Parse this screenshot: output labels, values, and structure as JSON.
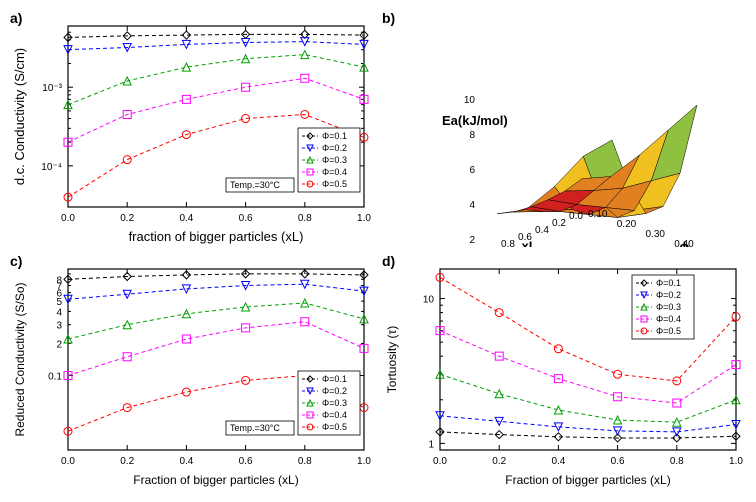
{
  "panels": {
    "a": {
      "label": "a)",
      "type": "line-log",
      "title": "",
      "xlabel": "fraction of bigger particles (xL)",
      "ylabel": "d.c. Conductivity (S/cm)",
      "xlim": [
        0.0,
        1.0
      ],
      "xtick_step": 0.2,
      "yticks": [
        0.0001,
        0.001
      ],
      "ytick_labels": [
        "10⁻⁴",
        "10⁻³"
      ],
      "axis_color": "#000000",
      "background": "#ffffff",
      "temp_label": "Temp.=30°C",
      "label_fontsize": 13,
      "tick_fontsize": 10,
      "series": [
        {
          "name": "Φ=0.1",
          "color": "#000000",
          "marker": "diamond",
          "x": [
            0.0,
            0.2,
            0.4,
            0.6,
            0.8,
            1.0
          ],
          "y": [
            0.0043,
            0.0045,
            0.0046,
            0.0047,
            0.0047,
            0.0046
          ]
        },
        {
          "name": "Φ=0.2",
          "color": "#0000ff",
          "marker": "triangle-down",
          "x": [
            0.0,
            0.2,
            0.4,
            0.6,
            0.8,
            1.0
          ],
          "y": [
            0.003,
            0.0032,
            0.0035,
            0.0037,
            0.0038,
            0.0035
          ]
        },
        {
          "name": "Φ=0.3",
          "color": "#00a000",
          "marker": "triangle-up",
          "x": [
            0.0,
            0.2,
            0.4,
            0.6,
            0.8,
            1.0
          ],
          "y": [
            0.0006,
            0.0012,
            0.0018,
            0.0023,
            0.0026,
            0.0018
          ]
        },
        {
          "name": "Φ=0.4",
          "color": "#ff00ff",
          "marker": "square",
          "x": [
            0.0,
            0.2,
            0.4,
            0.6,
            0.8,
            1.0
          ],
          "y": [
            0.0002,
            0.00045,
            0.0007,
            0.001,
            0.0013,
            0.0007
          ]
        },
        {
          "name": "Φ=0.5",
          "color": "#ff0000",
          "marker": "circle",
          "x": [
            0.0,
            0.2,
            0.4,
            0.6,
            0.8,
            1.0
          ],
          "y": [
            4e-05,
            0.00012,
            0.00025,
            0.0004,
            0.00045,
            0.00023
          ]
        }
      ]
    },
    "b": {
      "label": "b)",
      "type": "surface-3d",
      "zlabel": "Ea(kJ/mol)",
      "xlabel": "xL",
      "ylabel": "ϕ",
      "x_values": [
        0.0,
        0.2,
        0.4,
        0.6,
        0.8,
        1.0
      ],
      "y_values": [
        0.1,
        0.2,
        0.3,
        0.4,
        0.5
      ],
      "xl_ticks_shown": [
        "0.8",
        "0.6",
        "0.4",
        "0.2",
        "0.0"
      ],
      "phi_ticks_shown": [
        "0.10",
        "0.20",
        "0.30",
        "0.40",
        "0.50"
      ],
      "zlim": [
        2,
        10
      ],
      "colormap": [
        "#d02020",
        "#e08020",
        "#f0c020",
        "#90c040",
        "#108030",
        "#004020"
      ],
      "z": [
        [
          3.5,
          3.2,
          3.1,
          3.1,
          3.2,
          3.5
        ],
        [
          4.2,
          3.8,
          3.4,
          3.4,
          3.8,
          4.3
        ],
        [
          6.0,
          4.5,
          3.8,
          3.8,
          4.5,
          6.2
        ],
        [
          8.0,
          5.5,
          4.2,
          4.2,
          5.5,
          8.5
        ],
        [
          10.0,
          6.5,
          5.0,
          5.0,
          7.0,
          10.0
        ]
      ],
      "label_fontsize": 13
    },
    "c": {
      "label": "c)",
      "type": "line-log",
      "xlabel": "Fraction of bigger particles (xL)",
      "ylabel": "Reduced Conductivity (S/So)",
      "xlim": [
        0.0,
        1.0
      ],
      "xtick_step": 0.2,
      "yticks_minor": [
        0.02,
        0.03,
        0.04,
        0.05,
        0.06,
        0.07,
        0.08,
        0.09,
        0.1,
        0.2,
        0.3,
        0.4,
        0.5,
        0.6,
        0.7,
        0.8,
        0.9,
        1.0
      ],
      "ytick_labels_minor": [
        "",
        "",
        "",
        "",
        "",
        "",
        "",
        "",
        "0.1",
        "2",
        "3",
        "4",
        "5",
        "6",
        "7",
        "8",
        "",
        ""
      ],
      "temp_label": "Temp.=30°C",
      "label_fontsize": 12,
      "tick_fontsize": 10,
      "series": [
        {
          "name": "Φ=0.1",
          "color": "#000000",
          "marker": "diamond",
          "x": [
            0.0,
            0.2,
            0.4,
            0.6,
            0.8,
            1.0
          ],
          "y": [
            0.8,
            0.85,
            0.88,
            0.9,
            0.9,
            0.88
          ]
        },
        {
          "name": "Φ=0.2",
          "color": "#0000ff",
          "marker": "triangle-down",
          "x": [
            0.0,
            0.2,
            0.4,
            0.6,
            0.8,
            1.0
          ],
          "y": [
            0.52,
            0.58,
            0.65,
            0.7,
            0.72,
            0.62
          ]
        },
        {
          "name": "Φ=0.3",
          "color": "#00a000",
          "marker": "triangle-up",
          "x": [
            0.0,
            0.2,
            0.4,
            0.6,
            0.8,
            1.0
          ],
          "y": [
            0.22,
            0.3,
            0.38,
            0.44,
            0.48,
            0.34
          ]
        },
        {
          "name": "Φ=0.4",
          "color": "#ff00ff",
          "marker": "square",
          "x": [
            0.0,
            0.2,
            0.4,
            0.6,
            0.8,
            1.0
          ],
          "y": [
            0.1,
            0.15,
            0.22,
            0.28,
            0.32,
            0.18
          ]
        },
        {
          "name": "Φ=0.5",
          "color": "#ff0000",
          "marker": "circle",
          "x": [
            0.0,
            0.2,
            0.4,
            0.6,
            0.8,
            1.0
          ],
          "y": [
            0.03,
            0.05,
            0.07,
            0.09,
            0.1,
            0.05
          ]
        }
      ]
    },
    "d": {
      "label": "d)",
      "type": "line-log",
      "xlabel": "Fraction of bigger particles (xL)",
      "ylabel": "Tortuosity (τ)",
      "xlim": [
        0.0,
        1.0
      ],
      "xtick_step": 0.2,
      "yticks_minor": [
        1,
        2,
        3,
        4,
        5,
        6,
        7,
        8,
        9,
        10
      ],
      "ytick_labels_minor": [
        "1",
        "",
        "",
        "",
        "",
        "",
        "",
        "",
        "",
        "10"
      ],
      "label_fontsize": 12,
      "tick_fontsize": 10,
      "series": [
        {
          "name": "Φ=0.1",
          "color": "#000000",
          "marker": "diamond",
          "x": [
            0.0,
            0.2,
            0.4,
            0.6,
            0.8,
            1.0
          ],
          "y": [
            1.2,
            1.15,
            1.11,
            1.09,
            1.09,
            1.12
          ]
        },
        {
          "name": "Φ=0.2",
          "color": "#0000ff",
          "marker": "triangle-down",
          "x": [
            0.0,
            0.2,
            0.4,
            0.6,
            0.8,
            1.0
          ],
          "y": [
            1.55,
            1.42,
            1.3,
            1.22,
            1.2,
            1.35
          ]
        },
        {
          "name": "Φ=0.3",
          "color": "#00a000",
          "marker": "triangle-up",
          "x": [
            0.0,
            0.2,
            0.4,
            0.6,
            0.8,
            1.0
          ],
          "y": [
            3.0,
            2.2,
            1.7,
            1.45,
            1.4,
            2.0
          ]
        },
        {
          "name": "Φ=0.4",
          "color": "#ff00ff",
          "marker": "square",
          "x": [
            0.0,
            0.2,
            0.4,
            0.6,
            0.8,
            1.0
          ],
          "y": [
            6.0,
            4.0,
            2.8,
            2.1,
            1.9,
            3.5
          ]
        },
        {
          "name": "Φ=0.5",
          "color": "#ff0000",
          "marker": "circle",
          "x": [
            0.0,
            0.2,
            0.4,
            0.6,
            0.8,
            1.0
          ],
          "y": [
            14.0,
            8.0,
            4.5,
            3.0,
            2.7,
            7.5
          ]
        }
      ]
    }
  }
}
